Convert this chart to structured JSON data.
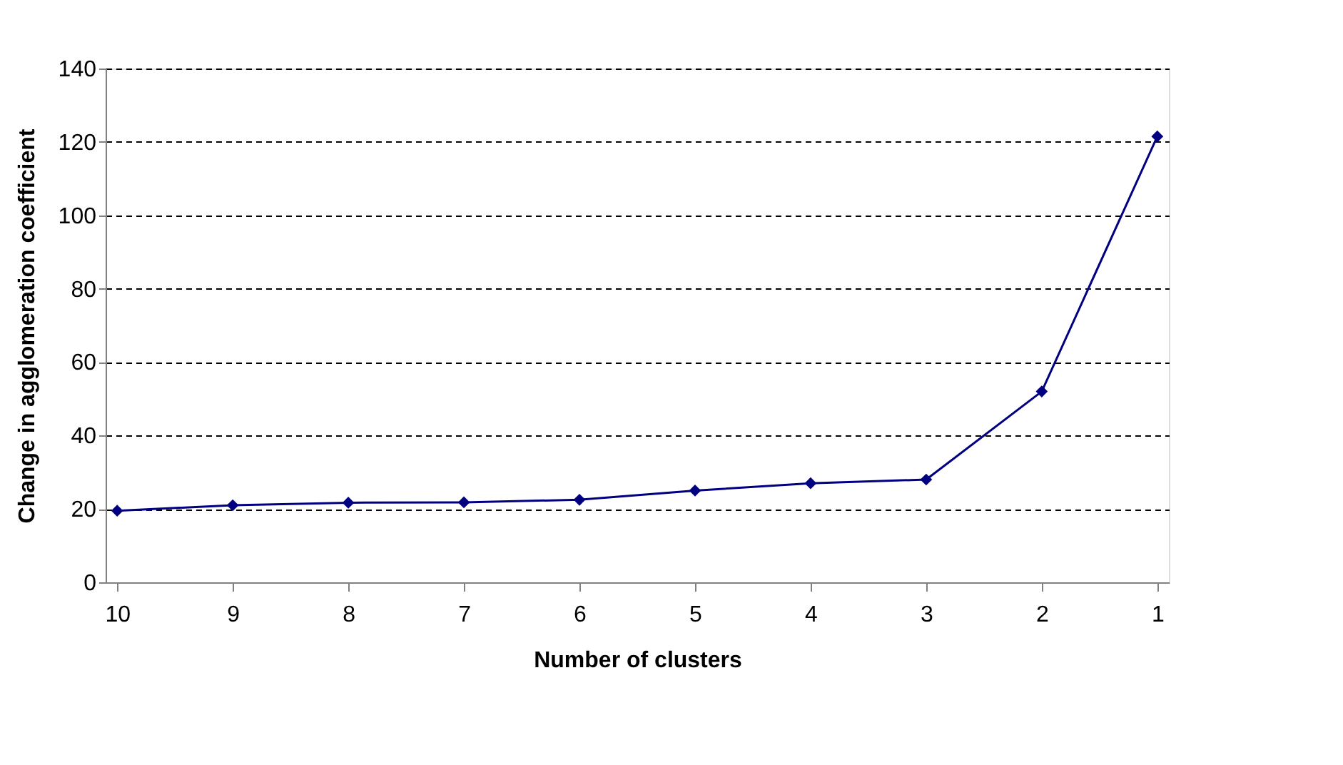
{
  "chart_data": {
    "type": "line",
    "xlabel": "Number of clusters",
    "ylabel": "Change in agglomeration coefficient",
    "categories": [
      "10",
      "9",
      "8",
      "7",
      "6",
      "5",
      "4",
      "3",
      "2",
      "1"
    ],
    "series": [
      {
        "color": "#000080",
        "values": [
          19.5,
          21,
          21.7,
          21.8,
          22.5,
          25,
          27,
          28,
          52,
          121.5
        ]
      }
    ],
    "ylim": [
      0,
      140
    ],
    "yticks": [
      0,
      20,
      40,
      60,
      80,
      100,
      120,
      140
    ],
    "grid": "y",
    "marker": "diamond",
    "line_style": "solid",
    "legend": false
  }
}
